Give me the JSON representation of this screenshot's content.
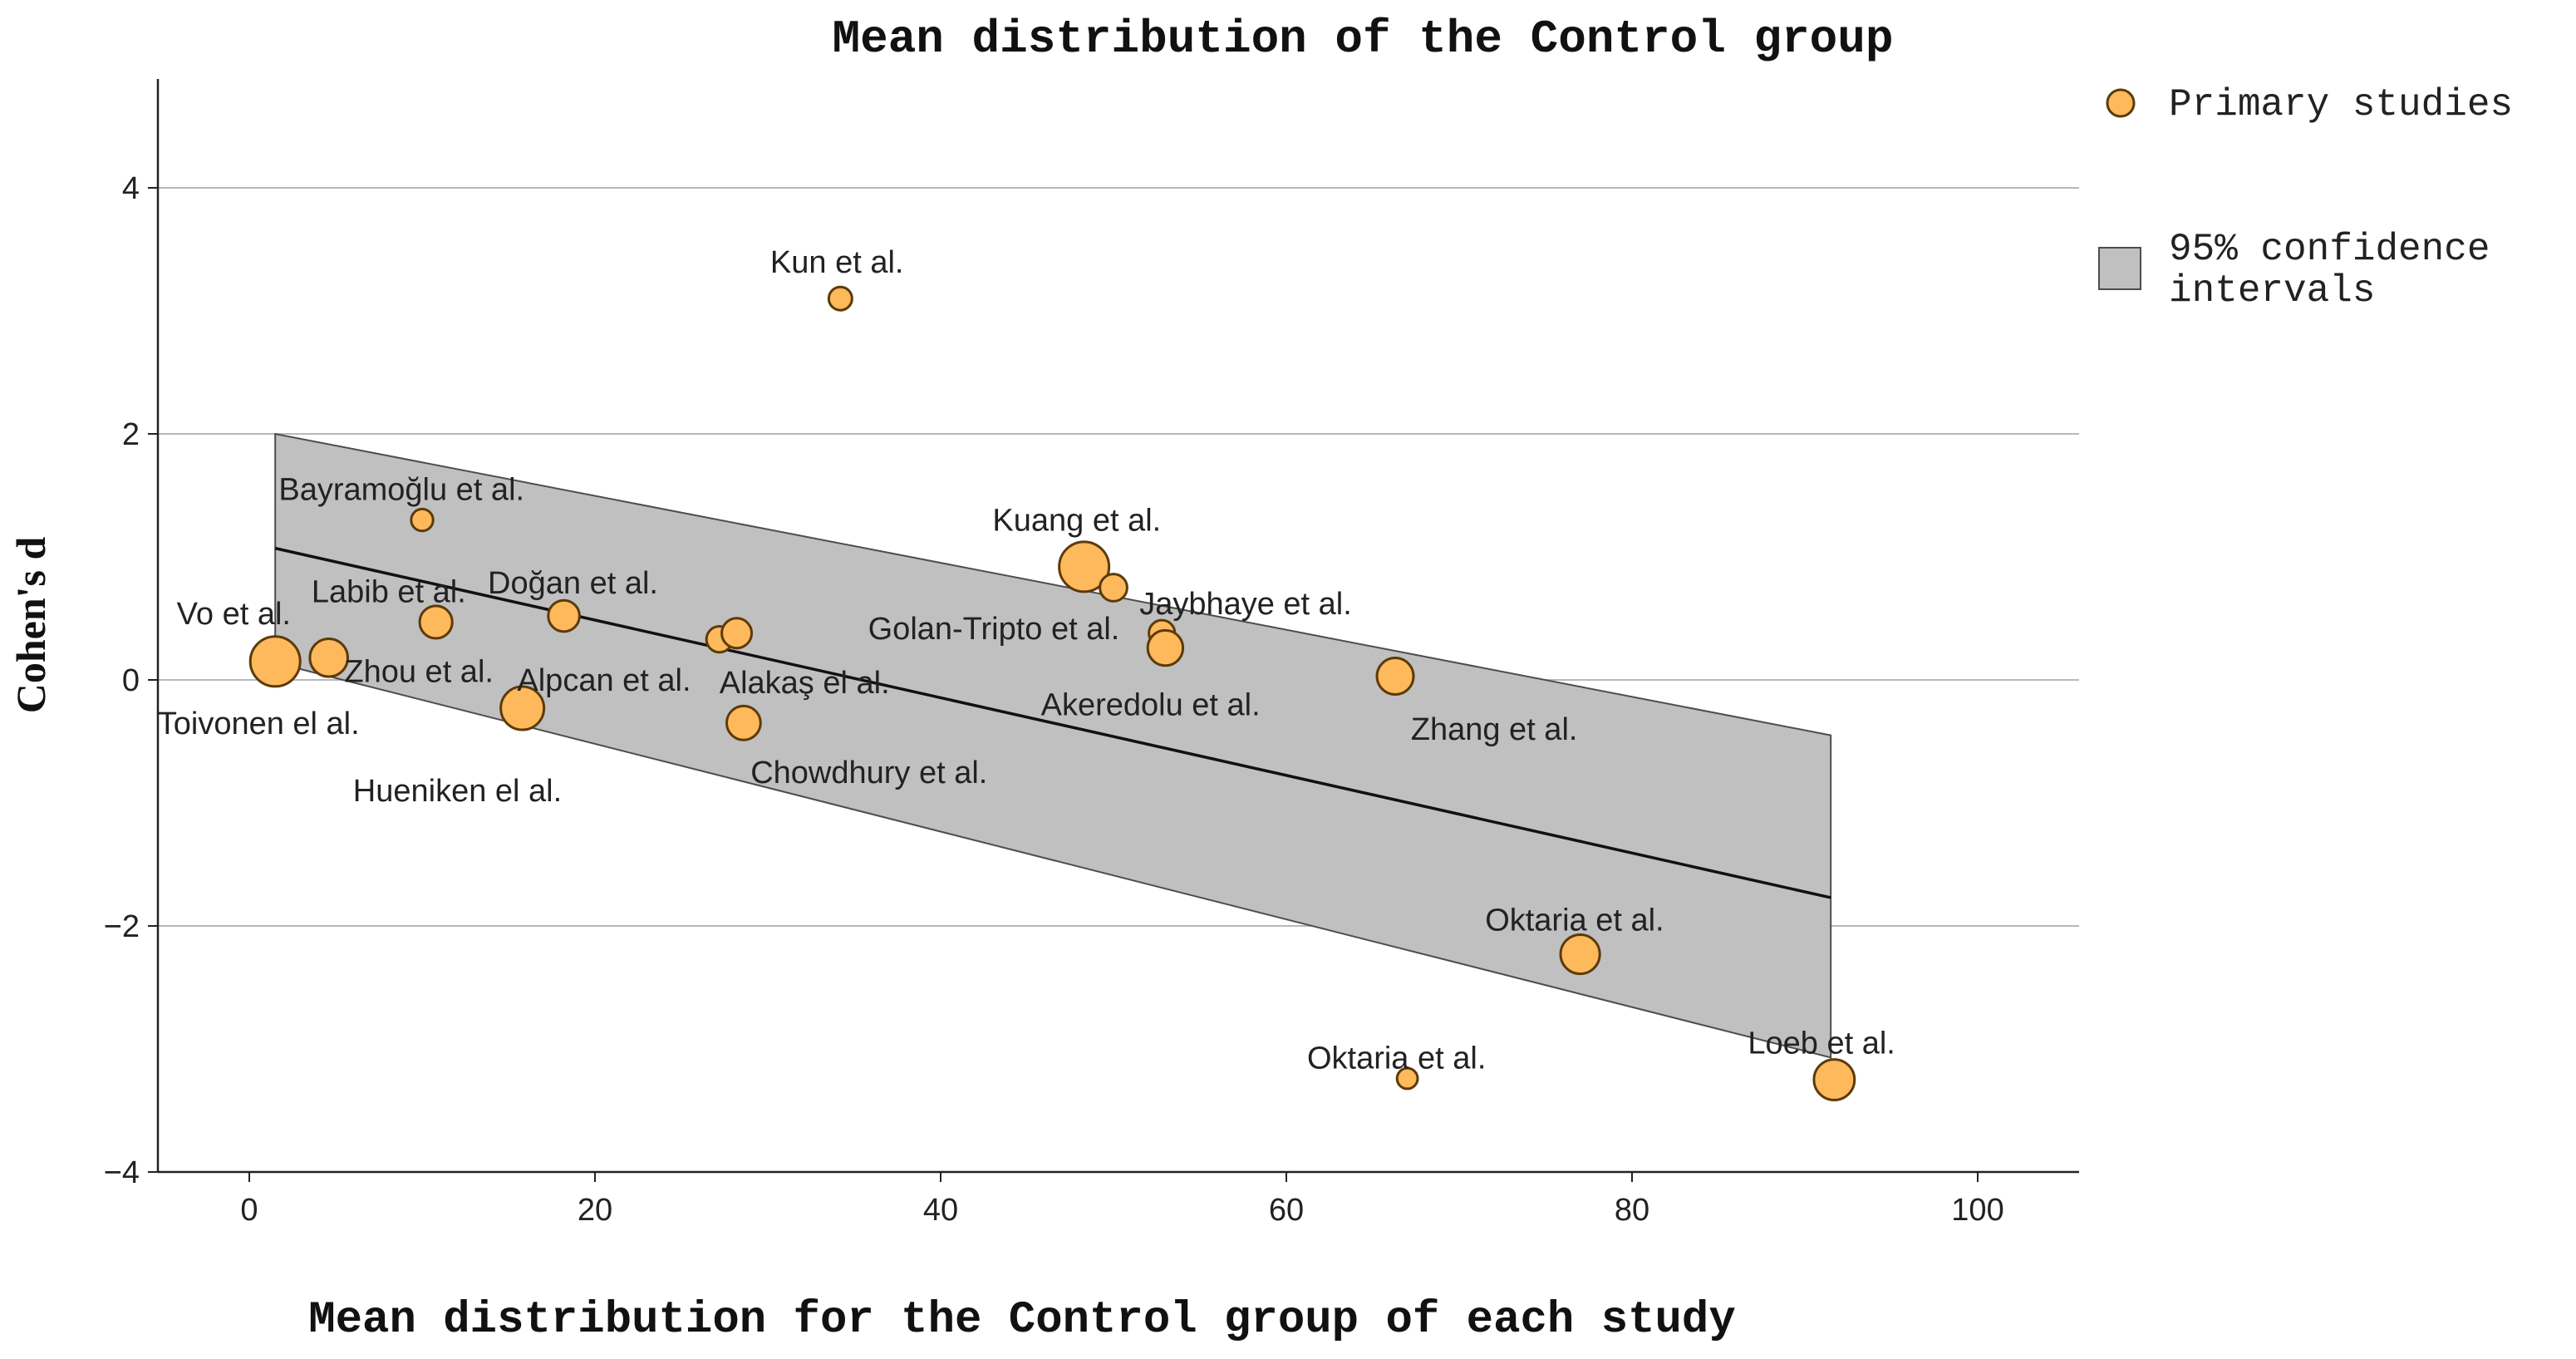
{
  "chart_data": {
    "type": "scatter",
    "title": "Mean distribution of the Control group",
    "xlabel": "Mean distribution for the Control group of each study",
    "ylabel": "Cohen's d",
    "xlim": [
      -5,
      105
    ],
    "ylim": [
      -4,
      4.9
    ],
    "xticks": [
      0,
      20,
      40,
      60,
      80,
      100
    ],
    "yticks": [
      -4,
      -2,
      0,
      2,
      4
    ],
    "grid": "horizontal",
    "colors": {
      "point_fill": "#FDB95C",
      "point_stroke": "#5C3A0A",
      "band_fill": "#C0C0C0",
      "band_stroke": "#4D4D4D",
      "grid": "#B8B8B8"
    },
    "legend": {
      "placement": "top-right",
      "items": [
        {
          "label": "Primary studies",
          "kind": "point"
        },
        {
          "label": "95% confidence intervals",
          "lines": [
            "95% confidence",
            "intervals"
          ],
          "kind": "band"
        }
      ]
    },
    "regression": {
      "x_start": 1.5,
      "y_start": 1.07,
      "x_end": 91.5,
      "y_end": -1.77,
      "ci_upper": [
        [
          1.5,
          2.0
        ],
        [
          91.5,
          -0.45
        ]
      ],
      "ci_lower": [
        [
          1.5,
          0.14
        ],
        [
          91.5,
          -3.07
        ]
      ]
    },
    "points": [
      {
        "x": 34.2,
        "y": 3.1,
        "size": 1.0
      },
      {
        "x": 10.0,
        "y": 1.3,
        "size": 0.9
      },
      {
        "x": 48.3,
        "y": 0.92,
        "size": 3.0
      },
      {
        "x": 50.0,
        "y": 0.75,
        "size": 1.3
      },
      {
        "x": 10.8,
        "y": 0.47,
        "size": 1.7
      },
      {
        "x": 18.2,
        "y": 0.52,
        "size": 1.6
      },
      {
        "x": 27.2,
        "y": 0.33,
        "size": 1.2
      },
      {
        "x": 28.2,
        "y": 0.38,
        "size": 1.5
      },
      {
        "x": 52.8,
        "y": 0.38,
        "size": 1.2
      },
      {
        "x": 53.0,
        "y": 0.26,
        "size": 1.9
      },
      {
        "x": 1.5,
        "y": 0.15,
        "size": 3.0
      },
      {
        "x": 4.6,
        "y": 0.18,
        "size": 2.1
      },
      {
        "x": 15.8,
        "y": -0.23,
        "size": 2.5
      },
      {
        "x": 28.6,
        "y": -0.35,
        "size": 1.8
      },
      {
        "x": 66.3,
        "y": 0.03,
        "size": 2.0
      },
      {
        "x": 77.0,
        "y": -2.23,
        "size": 2.2
      },
      {
        "x": 67.0,
        "y": -3.24,
        "size": 0.8
      },
      {
        "x": 91.7,
        "y": -3.25,
        "size": 2.3
      }
    ],
    "annotations": [
      {
        "text": "Kun et al.",
        "x": 34.0,
        "y": 3.4,
        "anchor": "middle"
      },
      {
        "text": "Bayramoğlu et al.",
        "x": 1.7,
        "y": 1.55,
        "anchor": "start"
      },
      {
        "text": "Kuang et al.",
        "x": 43.0,
        "y": 1.3,
        "anchor": "start"
      },
      {
        "text": "Labib et al.",
        "x": 3.6,
        "y": 0.72,
        "anchor": "start"
      },
      {
        "text": "Doğan  et al.",
        "x": 13.8,
        "y": 0.79,
        "anchor": "start"
      },
      {
        "text": "Jaybhaye et al.",
        "x": 51.5,
        "y": 0.62,
        "anchor": "start"
      },
      {
        "text": "Vo et al.",
        "x": -4.2,
        "y": 0.54,
        "anchor": "start"
      },
      {
        "text": "Golan-Tripto et al.",
        "x": 35.8,
        "y": 0.42,
        "anchor": "start"
      },
      {
        "text": "Zhou et al.",
        "x": 5.5,
        "y": 0.07,
        "anchor": "start"
      },
      {
        "text": "Alpcan et al.",
        "x": 15.5,
        "y": 0.0,
        "anchor": "start"
      },
      {
        "text": "Alakaş el al.",
        "x": 27.2,
        "y": -0.02,
        "anchor": "start"
      },
      {
        "text": "Akeredolu et al.",
        "x": 45.8,
        "y": -0.2,
        "anchor": "start"
      },
      {
        "text": "Toivonen el al.",
        "x": -5.3,
        "y": -0.35,
        "anchor": "start"
      },
      {
        "text": "Zhang et al.",
        "x": 67.2,
        "y": -0.4,
        "anchor": "start"
      },
      {
        "text": "Chowdhury et al.",
        "x": 29.0,
        "y": -0.75,
        "anchor": "start"
      },
      {
        "text": "Hueniken el al.",
        "x": 6.0,
        "y": -0.9,
        "anchor": "start"
      },
      {
        "text": "Oktaria et al.",
        "x": 71.5,
        "y": -1.95,
        "anchor": "start"
      },
      {
        "text": "Oktaria et al.",
        "x": 61.2,
        "y": -3.07,
        "anchor": "start"
      },
      {
        "text": "Loeb et al.",
        "x": 86.7,
        "y": -2.95,
        "anchor": "start"
      }
    ]
  }
}
